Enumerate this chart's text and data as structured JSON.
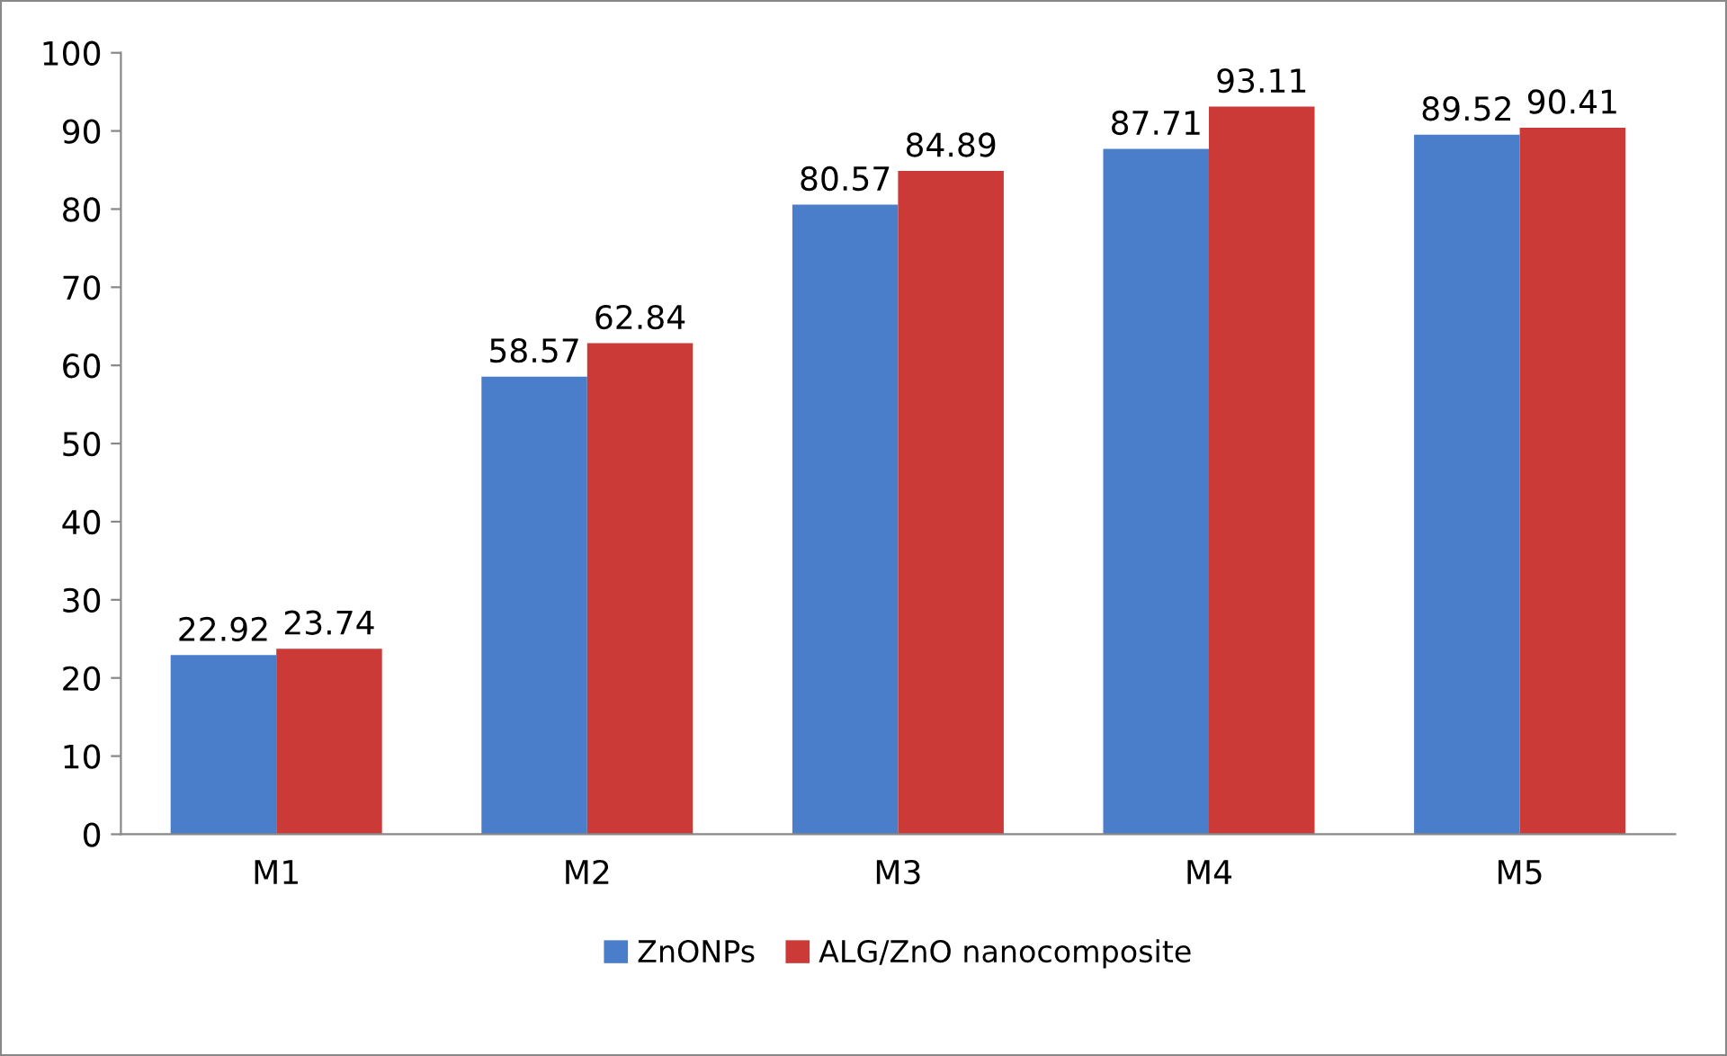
{
  "chart_data": {
    "type": "bar",
    "categories": [
      "M1",
      "M2",
      "M3",
      "M4",
      "M5"
    ],
    "series": [
      {
        "name": "ZnONPs",
        "color": "#4a7ecb",
        "values": [
          22.92,
          58.57,
          80.57,
          87.71,
          89.52
        ]
      },
      {
        "name": "ALG/ZnO nanocomposite",
        "color": "#cc3a38",
        "values": [
          23.74,
          62.84,
          84.89,
          93.11,
          90.41
        ]
      }
    ],
    "ylim": [
      0,
      100
    ],
    "yticks": [
      0,
      10,
      20,
      30,
      40,
      50,
      60,
      70,
      80,
      90,
      100
    ],
    "data_labels": true,
    "legend": "bottom",
    "grid": false
  }
}
